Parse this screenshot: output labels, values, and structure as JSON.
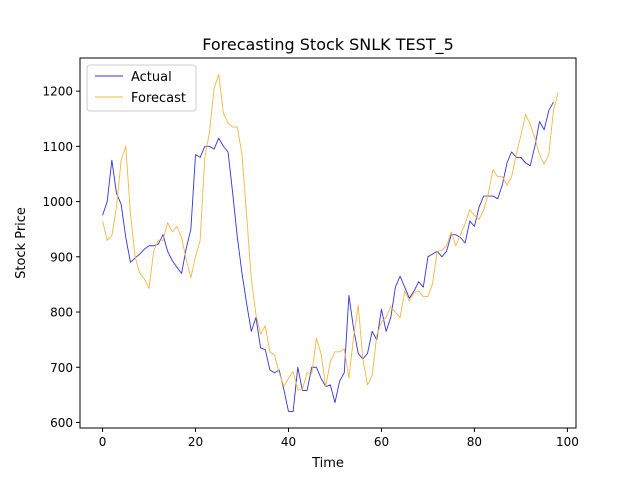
{
  "chart_data": {
    "type": "line",
    "title": "Forecasting Stock SNLK TEST_5",
    "xlabel": "Time",
    "ylabel": "Stock Price",
    "xlim": [
      -4.85,
      101.85
    ],
    "ylim": [
      590,
      1260
    ],
    "x_ticks": [
      0,
      20,
      40,
      60,
      80,
      100
    ],
    "y_ticks": [
      600,
      700,
      800,
      900,
      1000,
      1100,
      1200
    ],
    "grid": false,
    "legend_position": "top-left",
    "series": [
      {
        "name": "Actual",
        "color": "#3333dd",
        "values": [
          975,
          1000,
          1075,
          1015,
          995,
          935,
          890,
          898,
          905,
          914,
          920,
          920,
          923,
          940,
          910,
          893,
          881,
          870,
          915,
          950,
          1085,
          1080,
          1100,
          1100,
          1095,
          1115,
          1100,
          1090,
          1015,
          935,
          870,
          815,
          765,
          790,
          735,
          732,
          695,
          690,
          695,
          660,
          620,
          620,
          700,
          658,
          658,
          700,
          700,
          680,
          665,
          668,
          636,
          675,
          690,
          830,
          770,
          725,
          715,
          725,
          765,
          750,
          805,
          765,
          790,
          845,
          865,
          845,
          825,
          838,
          855,
          845,
          900,
          905,
          910,
          900,
          910,
          940,
          940,
          935,
          925,
          965,
          955,
          990,
          1010,
          1010,
          1010,
          1005,
          1030,
          1070,
          1090,
          1080,
          1080,
          1070,
          1065,
          1100,
          1145,
          1130,
          1165,
          1180
        ]
      },
      {
        "name": "Forecast",
        "color": "#f5b640",
        "values": [
          965,
          930,
          938,
          990,
          1075,
          1100,
          978,
          900,
          870,
          860,
          843,
          910,
          930,
          930,
          962,
          945,
          955,
          935,
          895,
          862,
          900,
          930,
          1080,
          1125,
          1205,
          1230,
          1160,
          1142,
          1135,
          1135,
          1085,
          975,
          860,
          795,
          760,
          775,
          728,
          722,
          690,
          665,
          680,
          692,
          660,
          660,
          690,
          688,
          752,
          725,
          665,
          710,
          728,
          728,
          733,
          680,
          755,
          812,
          715,
          668,
          685,
          758,
          782,
          790,
          810,
          800,
          790,
          838,
          820,
          835,
          838,
          828,
          828,
          852,
          910,
          912,
          920,
          945,
          920,
          940,
          960,
          985,
          975,
          968,
          985,
          1015,
          1058,
          1045,
          1045,
          1030,
          1045,
          1085,
          1120,
          1158,
          1140,
          1115,
          1085,
          1068,
          1085,
          1165,
          1198
        ]
      }
    ]
  }
}
